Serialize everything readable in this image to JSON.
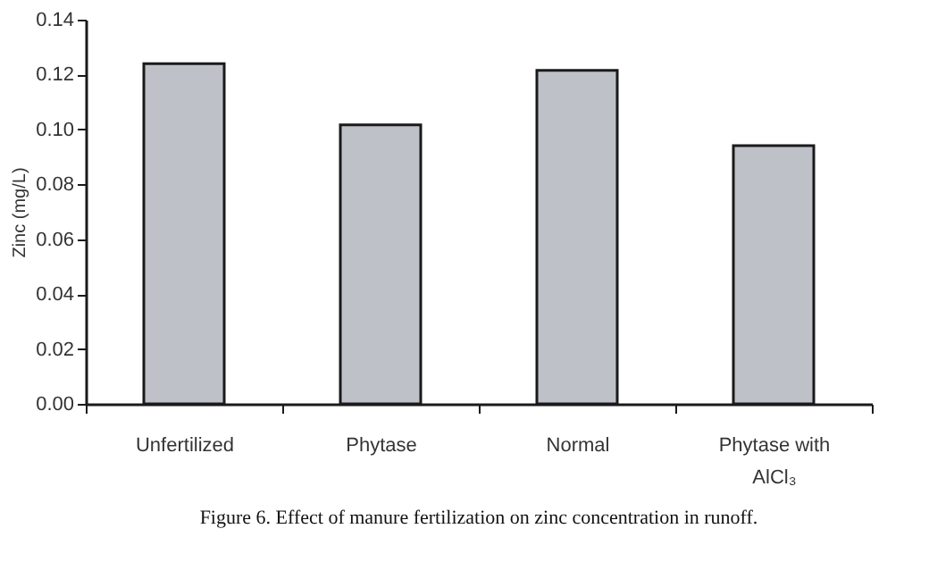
{
  "chart_data": {
    "type": "bar",
    "title": "Figure 6.  Effect of manure fertilization on zinc concentration in runoff.",
    "ylabel": "Zinc (mg/L)",
    "categories": [
      "Unfertilized",
      "Phytase",
      "Normal",
      "Phytase with AlCl₃"
    ],
    "values": [
      0.124,
      0.1017,
      0.1215,
      0.0941
    ],
    "color": "#bfc1c9",
    "ylim": [
      0,
      0.14
    ],
    "yticks": [
      {
        "value": 0,
        "label": "0.00"
      },
      0.02,
      0.04,
      0.06,
      0.08,
      {
        "value": 0.1,
        "label": "0.10"
      },
      0.12,
      0.14
    ],
    "grid": false
  }
}
